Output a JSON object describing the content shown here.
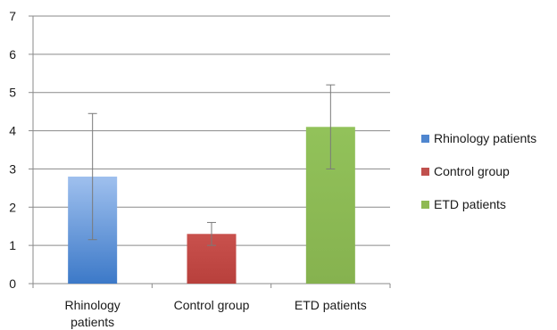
{
  "chart_data": {
    "type": "bar",
    "categories": [
      "Rhinology patients",
      "Control group",
      "ETD patients"
    ],
    "category_tick_lines": [
      [
        "Rhinology",
        "patients"
      ],
      [
        "Control group"
      ],
      [
        "ETD patients"
      ]
    ],
    "values": [
      2.8,
      1.3,
      4.1
    ],
    "error_low": [
      1.15,
      1.0,
      3.0
    ],
    "error_high": [
      4.45,
      1.6,
      5.2
    ],
    "ylim": [
      0,
      7
    ],
    "yticks": [
      "0",
      "1",
      "2",
      "3",
      "4",
      "5",
      "6",
      "7"
    ],
    "grid": true,
    "title": "",
    "xlabel": "",
    "ylabel": "",
    "legend_position": "right",
    "legend": [
      "Rhinology patients",
      "Control group",
      "ETD patients"
    ],
    "colors": [
      "#4f86cf",
      "#c0504d",
      "#8fba53"
    ],
    "color_stops": [
      [
        "#9fc0ee",
        "#3c79c8"
      ],
      [
        "#c9514d",
        "#b8403c"
      ],
      [
        "#92c25a",
        "#86b24f"
      ]
    ]
  }
}
